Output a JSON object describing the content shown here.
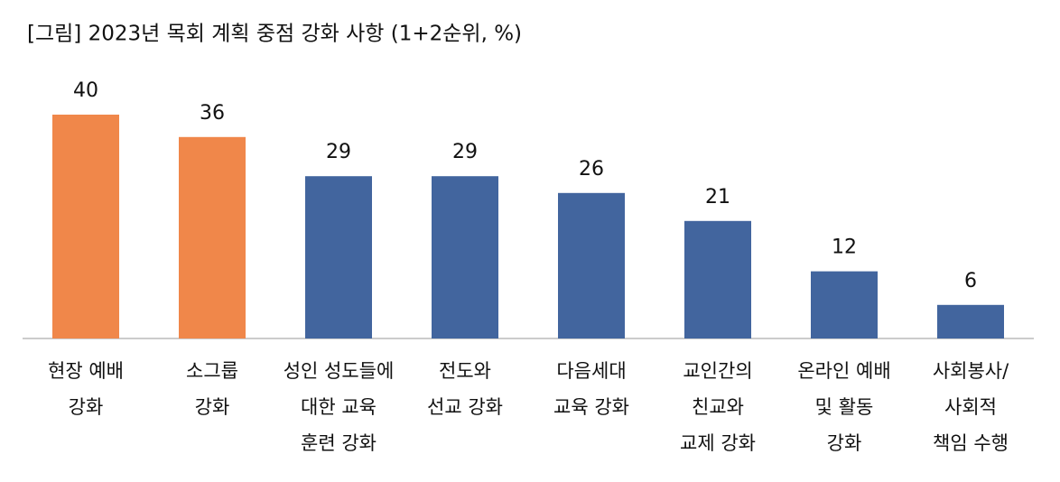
{
  "chart_data": {
    "type": "bar",
    "title": "[그림] 2023년 목회 계획 중점 강화 사항 (1+2순위, %)",
    "categories": [
      [
        "현장 예배",
        "강화"
      ],
      [
        "소그룹",
        "강화"
      ],
      [
        "성인 성도들에",
        "대한 교육",
        "훈련 강화"
      ],
      [
        "전도와",
        "선교 강화"
      ],
      [
        "다음세대",
        "교육 강화"
      ],
      [
        "교인간의",
        "친교와",
        "교제 강화"
      ],
      [
        "온라인 예배",
        "및 활동",
        "강화"
      ],
      [
        "사회봉사/",
        "사회적",
        "책임 수행"
      ]
    ],
    "values": [
      40,
      36,
      29,
      29,
      26,
      21,
      12,
      6
    ],
    "colors": [
      "#f0874a",
      "#f0874a",
      "#42659e",
      "#42659e",
      "#42659e",
      "#42659e",
      "#42659e",
      "#42659e"
    ]
  }
}
